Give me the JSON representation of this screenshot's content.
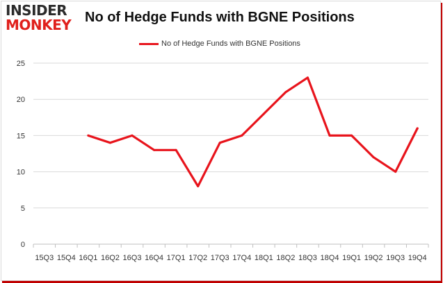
{
  "header": {
    "logo_line1": "INSIDER",
    "logo_line2": "MONKEY",
    "title": "No of Hedge Funds with BGNE Positions"
  },
  "chart_data": {
    "type": "line",
    "title": "No of Hedge Funds with BGNE Positions",
    "xlabel": "",
    "ylabel": "",
    "categories": [
      "15Q3",
      "15Q4",
      "16Q1",
      "16Q2",
      "16Q3",
      "16Q4",
      "17Q1",
      "17Q2",
      "17Q3",
      "17Q4",
      "18Q1",
      "18Q2",
      "18Q3",
      "18Q4",
      "19Q1",
      "19Q2",
      "19Q3",
      "19Q4"
    ],
    "series": [
      {
        "name": "No of Hedge Funds with BGNE Positions",
        "values": [
          null,
          null,
          15,
          14,
          15,
          13,
          13,
          8,
          14,
          15,
          18,
          21,
          23,
          15,
          15,
          12,
          10,
          16
        ],
        "color": "#e8141c"
      }
    ],
    "ylim": [
      0,
      25
    ],
    "yticks": [
      0,
      5,
      10,
      15,
      20,
      25
    ],
    "grid": true,
    "legend": "top-center"
  }
}
